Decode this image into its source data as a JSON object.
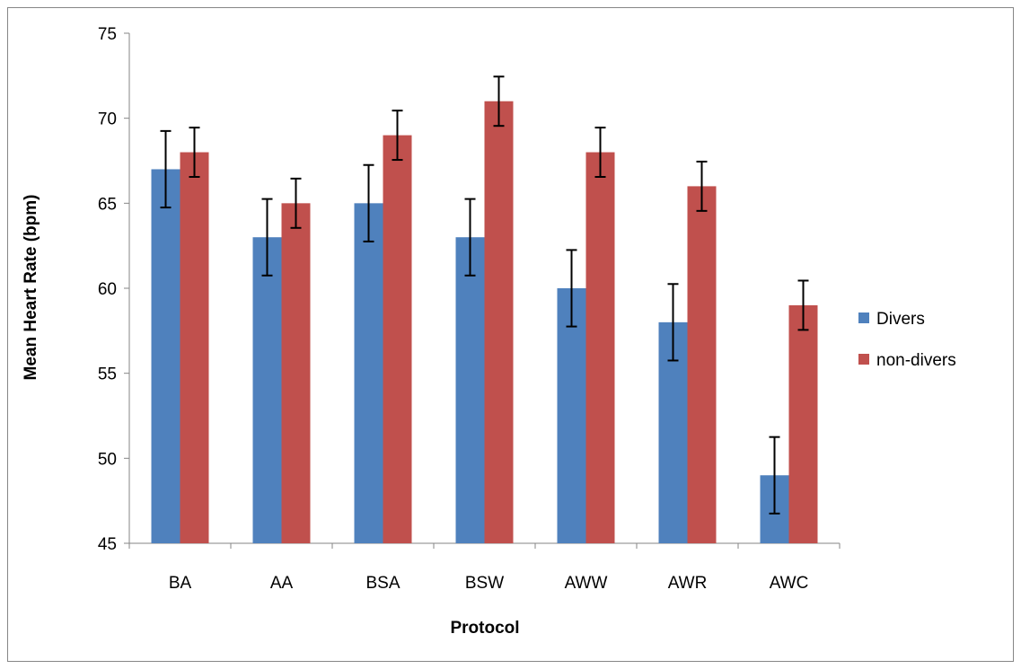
{
  "chart_data": {
    "type": "bar",
    "categories": [
      "BA",
      "AA",
      "BSA",
      "BSW",
      "AWW",
      "AWR",
      "AWC"
    ],
    "series": [
      {
        "name": "Divers",
        "color": "#4F81BD",
        "values": [
          67,
          63,
          65,
          63,
          60,
          58,
          49
        ],
        "error": [
          2.25,
          2.25,
          2.25,
          2.25,
          2.25,
          2.25,
          2.25
        ]
      },
      {
        "name": "non-divers",
        "color": "#C0504D",
        "values": [
          68,
          65,
          69,
          71,
          68,
          66,
          59
        ],
        "error": [
          1.45,
          1.45,
          1.45,
          1.45,
          1.45,
          1.45,
          1.45
        ]
      }
    ],
    "xlabel": "Protocol",
    "ylabel": "Mean Heart Rate (bpm)",
    "ylim": [
      45,
      75
    ],
    "yticks": [
      45,
      50,
      55,
      60,
      65,
      70,
      75
    ],
    "grid": false,
    "legend_position": "right"
  }
}
